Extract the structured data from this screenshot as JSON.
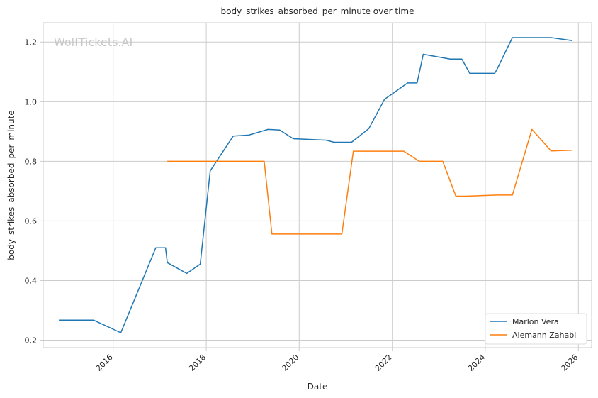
{
  "watermark": "WolfTickets.AI",
  "chart_data": {
    "type": "line",
    "title": "body_strikes_absorbed_per_minute over time",
    "xlabel": "Date",
    "ylabel": "body_strikes_absorbed_per_minute",
    "xlim": [
      "2014-07-01",
      "2026-04-15"
    ],
    "ylim": [
      0.175,
      1.265
    ],
    "x_ticks": [
      "2016",
      "2018",
      "2020",
      "2022",
      "2024",
      "2026"
    ],
    "y_ticks": [
      "0.2",
      "0.4",
      "0.6",
      "0.8",
      "1.0",
      "1.2"
    ],
    "grid": true,
    "legend_position": "lower right",
    "series": [
      {
        "name": "Marlon Vera",
        "color": "#1f77b4",
        "points": [
          [
            "2014-11-01",
            0.267
          ],
          [
            "2015-08-01",
            0.267
          ],
          [
            "2016-03-01",
            0.225
          ],
          [
            "2016-12-01",
            0.51
          ],
          [
            "2017-02-15",
            0.51
          ],
          [
            "2017-03-01",
            0.46
          ],
          [
            "2017-08-01",
            0.424
          ],
          [
            "2017-11-15",
            0.455
          ],
          [
            "2018-02-01",
            0.768
          ],
          [
            "2018-08-01",
            0.885
          ],
          [
            "2018-12-01",
            0.888
          ],
          [
            "2019-05-01",
            0.907
          ],
          [
            "2019-08-01",
            0.905
          ],
          [
            "2019-11-15",
            0.876
          ],
          [
            "2020-08-01",
            0.871
          ],
          [
            "2020-10-01",
            0.864
          ],
          [
            "2021-02-15",
            0.864
          ],
          [
            "2021-07-01",
            0.91
          ],
          [
            "2021-11-01",
            1.008
          ],
          [
            "2022-05-01",
            1.063
          ],
          [
            "2022-07-15",
            1.063
          ],
          [
            "2022-09-01",
            1.159
          ],
          [
            "2023-04-01",
            1.143
          ],
          [
            "2023-07-01",
            1.143
          ],
          [
            "2023-09-01",
            1.095
          ],
          [
            "2024-03-15",
            1.095
          ],
          [
            "2024-04-01",
            1.108
          ],
          [
            "2024-08-01",
            1.215
          ],
          [
            "2025-06-01",
            1.215
          ],
          [
            "2025-11-15",
            1.205
          ]
        ]
      },
      {
        "name": "Aiemann Zahabi",
        "color": "#ff7f0e",
        "points": [
          [
            "2017-03-01",
            0.8
          ],
          [
            "2019-04-01",
            0.8
          ],
          [
            "2019-06-01",
            0.556
          ],
          [
            "2020-12-01",
            0.556
          ],
          [
            "2021-03-01",
            0.834
          ],
          [
            "2022-04-01",
            0.834
          ],
          [
            "2022-08-01",
            0.8
          ],
          [
            "2023-02-01",
            0.8
          ],
          [
            "2023-05-15",
            0.683
          ],
          [
            "2023-08-01",
            0.683
          ],
          [
            "2024-04-01",
            0.687
          ],
          [
            "2024-08-01",
            0.687
          ],
          [
            "2025-01-01",
            0.907
          ],
          [
            "2025-06-01",
            0.835
          ],
          [
            "2025-11-15",
            0.837
          ]
        ]
      }
    ]
  }
}
